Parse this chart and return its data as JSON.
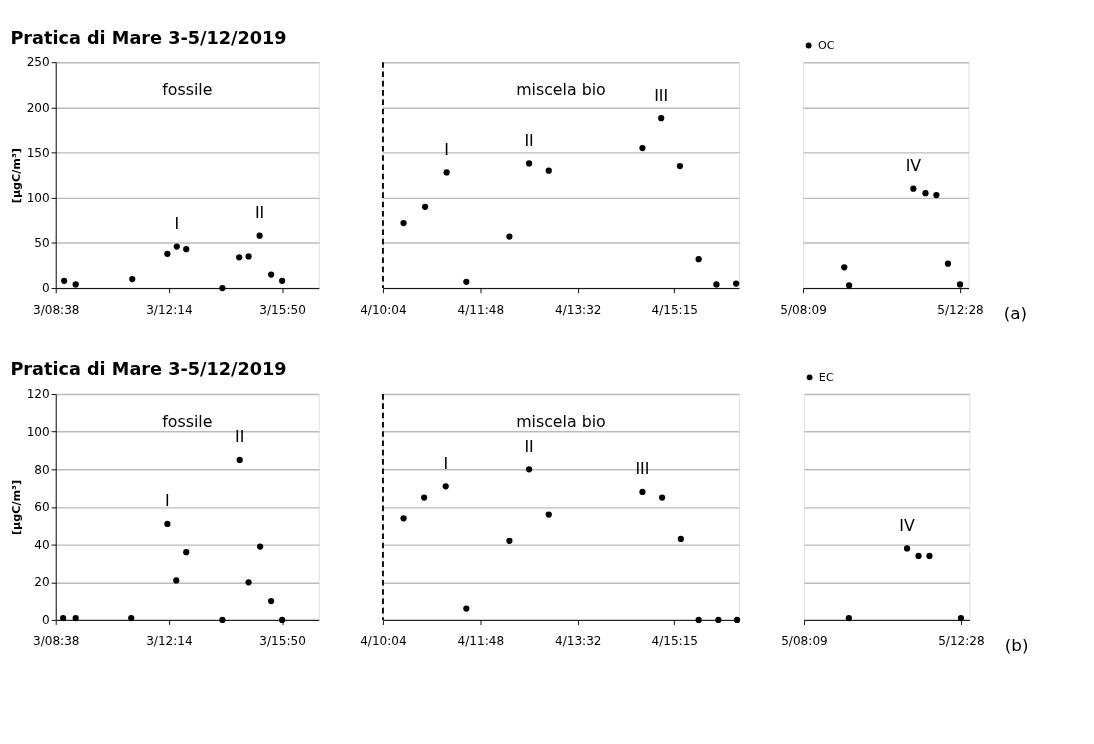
{
  "chart_data": [
    {
      "type": "scatter",
      "title": "Pratica di Mare 3-5/12/2019",
      "ylabel": "[µgC/m³]",
      "marker": "circle",
      "grid": "y",
      "series": [
        {
          "color": "#000000",
          "x": [
            "2019-12-03T08:54",
            "2019-12-03T09:16",
            "2019-12-03T11:04",
            "2019-12-03T12:11",
            "2019-12-03T12:29",
            "2019-12-03T12:47",
            "2019-12-03T13:56",
            "2019-12-03T14:28",
            "2019-12-03T14:46",
            "2019-12-03T15:07",
            "2019-12-03T15:29",
            "2019-12-03T15:50"
          ],
          "values": [
            8,
            4,
            10,
            38,
            46,
            43,
            0,
            34,
            35,
            58,
            15,
            8
          ]
        }
      ],
      "xlim": [
        "2019-12-03T08:38",
        "2019-12-03T17:00"
      ],
      "xticks": [
        {
          "value": "2019-12-03T08:38",
          "label": "3/08:38"
        },
        {
          "value": "2019-12-03T12:14",
          "label": "3/12:14"
        },
        {
          "value": "2019-12-03T15:50",
          "label": "3/15:50"
        }
      ],
      "ylim": [
        0,
        250
      ],
      "yticks": [
        0,
        50,
        100,
        150,
        200,
        250
      ],
      "annotations": [
        "fossile",
        {
          "text": "I",
          "x": "2019-12-03T12:29",
          "y": 46
        },
        {
          "text": "II",
          "x": "2019-12-03T15:07",
          "y": 58
        }
      ]
    },
    {
      "type": "scatter",
      "marker": "circle",
      "grid": "y",
      "tick_labels": "x",
      "series": [
        {
          "color": "#000000",
          "x": [
            "2019-12-04T10:26",
            "2019-12-04T10:49",
            "2019-12-04T11:12",
            "2019-12-04T11:33",
            "2019-12-04T12:19",
            "2019-12-04T12:40",
            "2019-12-04T13:01",
            "2019-12-04T14:41",
            "2019-12-04T15:01",
            "2019-12-04T15:21",
            "2019-12-04T15:41",
            "2019-12-04T16:00",
            "2019-12-04T16:21"
          ],
          "values": [
            72,
            90,
            128,
            7,
            57,
            138,
            130,
            155,
            188,
            135,
            32,
            4,
            5
          ]
        }
      ],
      "xlim": [
        "2019-12-04T10:04",
        "2019-12-04T16:24"
      ],
      "xticks": [
        {
          "value": "2019-12-04T10:04",
          "label": "4/10:04"
        },
        {
          "value": "2019-12-04T11:48",
          "label": "4/11:48"
        },
        {
          "value": "2019-12-04T13:32",
          "label": "4/13:32"
        },
        {
          "value": "2019-12-04T15:15",
          "label": "4/15:15"
        }
      ],
      "ylim": [
        0,
        250
      ],
      "yticks": [
        0,
        50,
        100,
        150,
        200,
        250
      ],
      "ref_lines": [
        {
          "axis": "x",
          "value": "2019-12-04T10:04",
          "line_style": "dashed",
          "color": "#000000"
        }
      ],
      "annotations": [
        "miscela bio",
        {
          "text": "I",
          "x": "2019-12-04T11:12",
          "y": 128
        },
        {
          "text": "II",
          "x": "2019-12-04T12:40",
          "y": 138
        },
        {
          "text": "III",
          "x": "2019-12-04T15:01",
          "y": 188
        }
      ]
    },
    {
      "type": "scatter",
      "marker": "circle",
      "grid": "y",
      "tick_labels": "x",
      "legend": "top",
      "series": [
        {
          "name": "OC",
          "color": "#000000",
          "x": [
            "2019-12-05T09:17",
            "2019-12-05T09:25",
            "2019-12-05T11:11",
            "2019-12-05T11:31",
            "2019-12-05T11:49",
            "2019-12-05T12:08",
            "2019-12-05T12:28"
          ],
          "values": [
            23,
            3,
            110,
            105,
            103,
            27,
            4
          ]
        }
      ],
      "xlim": [
        "2019-12-05T08:09",
        "2019-12-05T12:42"
      ],
      "xticks": [
        {
          "value": "2019-12-05T08:09",
          "label": "5/08:09"
        },
        {
          "value": "2019-12-05T12:28",
          "label": "5/12:28"
        }
      ],
      "ylim": [
        0,
        250
      ],
      "yticks": [
        0,
        50,
        100,
        150,
        200,
        250
      ],
      "annotations": [
        {
          "text": "IV",
          "x": "2019-12-05T11:11",
          "y": 110
        },
        "(a)"
      ]
    },
    {
      "type": "scatter",
      "title": "Pratica di Mare 3-5/12/2019",
      "ylabel": "[µgC/m³]",
      "marker": "circle",
      "grid": "y",
      "series": [
        {
          "color": "#000000",
          "x": [
            "2019-12-03T08:52",
            "2019-12-03T09:16",
            "2019-12-03T11:02",
            "2019-12-03T12:11",
            "2019-12-03T12:28",
            "2019-12-03T12:47",
            "2019-12-03T13:56",
            "2019-12-03T14:29",
            "2019-12-03T14:46",
            "2019-12-03T15:08",
            "2019-12-03T15:29",
            "2019-12-03T15:50"
          ],
          "values": [
            1,
            1,
            1,
            51,
            21,
            36,
            0,
            85,
            20,
            39,
            10,
            0
          ]
        }
      ],
      "xlim": [
        "2019-12-03T08:38",
        "2019-12-03T17:00"
      ],
      "xticks": [
        {
          "value": "2019-12-03T08:38",
          "label": "3/08:38"
        },
        {
          "value": "2019-12-03T12:14",
          "label": "3/12:14"
        },
        {
          "value": "2019-12-03T15:50",
          "label": "3/15:50"
        }
      ],
      "ylim": [
        0,
        120
      ],
      "yticks": [
        0,
        20,
        40,
        60,
        80,
        100,
        120
      ],
      "annotations": [
        "fossile",
        {
          "text": "I",
          "x": "2019-12-03T12:11",
          "y": 51
        },
        {
          "text": "II",
          "x": "2019-12-03T14:29",
          "y": 85
        }
      ]
    },
    {
      "type": "scatter",
      "marker": "circle",
      "grid": "y",
      "tick_labels": "x",
      "series": [
        {
          "color": "#000000",
          "x": [
            "2019-12-04T10:26",
            "2019-12-04T10:48",
            "2019-12-04T11:11",
            "2019-12-04T11:33",
            "2019-12-04T12:19",
            "2019-12-04T12:40",
            "2019-12-04T13:01",
            "2019-12-04T14:41",
            "2019-12-04T15:02",
            "2019-12-04T15:22",
            "2019-12-04T15:41",
            "2019-12-04T16:02",
            "2019-12-04T16:22"
          ],
          "values": [
            54,
            65,
            71,
            6,
            42,
            80,
            56,
            68,
            65,
            43,
            0,
            0,
            0
          ]
        }
      ],
      "xlim": [
        "2019-12-04T10:04",
        "2019-12-04T16:24"
      ],
      "xticks": [
        {
          "value": "2019-12-04T10:04",
          "label": "4/10:04"
        },
        {
          "value": "2019-12-04T11:48",
          "label": "4/11:48"
        },
        {
          "value": "2019-12-04T13:32",
          "label": "4/13:32"
        },
        {
          "value": "2019-12-04T15:15",
          "label": "4/15:15"
        }
      ],
      "ylim": [
        0,
        120
      ],
      "yticks": [
        0,
        20,
        40,
        60,
        80,
        100,
        120
      ],
      "ref_lines": [
        {
          "axis": "x",
          "value": "2019-12-04T10:04",
          "line_style": "dashed",
          "color": "#000000"
        }
      ],
      "annotations": [
        "miscela bio",
        {
          "text": "I",
          "x": "2019-12-04T11:11",
          "y": 71
        },
        {
          "text": "II",
          "x": "2019-12-04T12:40",
          "y": 80
        },
        {
          "text": "III",
          "x": "2019-12-04T14:41",
          "y": 68
        }
      ]
    },
    {
      "type": "scatter",
      "marker": "circle",
      "grid": "y",
      "tick_labels": "x",
      "legend": "top",
      "series": [
        {
          "name": "EC",
          "color": "#000000",
          "x": [
            "2019-12-05T09:23",
            "2019-12-05T10:59",
            "2019-12-05T11:18",
            "2019-12-05T11:36",
            "2019-12-05T12:28"
          ],
          "values": [
            1,
            38,
            34,
            34,
            1
          ]
        }
      ],
      "xlim": [
        "2019-12-05T08:09",
        "2019-12-05T12:42"
      ],
      "xticks": [
        {
          "value": "2019-12-05T08:09",
          "label": "5/08:09"
        },
        {
          "value": "2019-12-05T12:28",
          "label": "5/12:28"
        }
      ],
      "ylim": [
        0,
        120
      ],
      "yticks": [
        0,
        20,
        40,
        60,
        80,
        100,
        120
      ],
      "annotations": [
        {
          "text": "IV",
          "x": "2019-12-05T10:59",
          "y": 38
        },
        "(b)"
      ]
    }
  ]
}
